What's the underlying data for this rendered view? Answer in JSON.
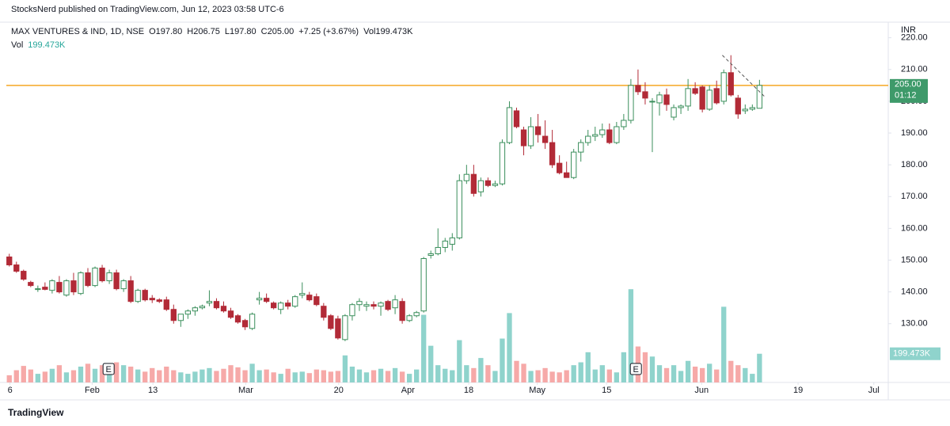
{
  "publisher": "StocksNerd published on TradingView.com, Jun 12, 2023 03:58 UTC-6",
  "brand": "TradingView",
  "chart_data": {
    "type": "candlestick",
    "symbol": "MAX VENTURES & IND, 1D, NSE",
    "ohlc_labels": [
      "O197.80",
      "H206.75",
      "L197.80",
      "C205.00",
      "+7.25 (+3.67%)",
      "Vol199.473K"
    ],
    "vol_title": "Vol",
    "vol_value": "199.473K",
    "currency": "INR",
    "up_color": "#3b8f5c",
    "down_color": "#b22a37",
    "vol_up_color": "#8fd3cc",
    "vol_down_color": "#f6a9a8",
    "grid": false,
    "ylim": [
      111.5,
      224.4
    ],
    "yticks": [
      {
        "value": 130,
        "label": "130.00"
      },
      {
        "value": 140,
        "label": "140.00"
      },
      {
        "value": 150,
        "label": "150.00"
      },
      {
        "value": 160,
        "label": "160.00"
      },
      {
        "value": 170,
        "label": "170.00"
      },
      {
        "value": 180,
        "label": "180.00"
      },
      {
        "value": 190,
        "label": "190.00"
      },
      {
        "value": 200,
        "label": "200.00"
      },
      {
        "value": 210,
        "label": "210.00"
      },
      {
        "value": 220,
        "label": "220.00"
      }
    ],
    "xlim": [
      -1.3,
      122.8
    ],
    "xticks": [
      {
        "value": 0.1,
        "label": "6"
      },
      {
        "value": 11.6,
        "label": "Feb"
      },
      {
        "value": 20.1,
        "label": "13"
      },
      {
        "value": 33.1,
        "label": "Mar"
      },
      {
        "value": 46.1,
        "label": "20"
      },
      {
        "value": 55.8,
        "label": "Apr"
      },
      {
        "value": 64.3,
        "label": "18"
      },
      {
        "value": 73.9,
        "label": "May"
      },
      {
        "value": 83.6,
        "label": "15"
      },
      {
        "value": 96.9,
        "label": "Jun"
      },
      {
        "value": 110.4,
        "label": "19"
      },
      {
        "value": 121.0,
        "label": "Jul"
      }
    ],
    "candles": [
      [
        151,
        152,
        148,
        148.5
      ],
      [
        148.5,
        149.5,
        146,
        146.5
      ],
      [
        146.5,
        147,
        143.5,
        144
      ],
      [
        143,
        143.5,
        141.5,
        142
      ],
      [
        141,
        142,
        140,
        141
      ],
      [
        141.5,
        143,
        140.5,
        140.8
      ],
      [
        140.5,
        144,
        139.5,
        143.5
      ],
      [
        143,
        145,
        139.5,
        140
      ],
      [
        139,
        144,
        138.5,
        143.5
      ],
      [
        143.5,
        146,
        139,
        140
      ],
      [
        139.5,
        146.5,
        139,
        146
      ],
      [
        146,
        147.5,
        141.5,
        142
      ],
      [
        142,
        148,
        141.5,
        147.5
      ],
      [
        147.5,
        148.5,
        143,
        143.5
      ],
      [
        143.5,
        147,
        142.5,
        146
      ],
      [
        146,
        147,
        140.5,
        141
      ],
      [
        141,
        144,
        140,
        143.5
      ],
      [
        143.5,
        145,
        136.5,
        137
      ],
      [
        137,
        141,
        136.5,
        140.5
      ],
      [
        140.5,
        141,
        137,
        137.5
      ],
      [
        138,
        139,
        136.5,
        137.5
      ],
      [
        137.5,
        138,
        136.5,
        137
      ],
      [
        137.5,
        138.5,
        134,
        134.5
      ],
      [
        134.5,
        136,
        130,
        131
      ],
      [
        131,
        133,
        129,
        133
      ],
      [
        133,
        134.5,
        131.5,
        134
      ],
      [
        134,
        135.5,
        132.5,
        135
      ],
      [
        135,
        136,
        134.5,
        135.5
      ],
      [
        136.5,
        140.5,
        135.5,
        137
      ],
      [
        137,
        138,
        134.5,
        135
      ],
      [
        135.5,
        137,
        133.5,
        134
      ],
      [
        134,
        135,
        131.5,
        132
      ],
      [
        132.5,
        133,
        130,
        130.5
      ],
      [
        131,
        131.5,
        128,
        129
      ],
      [
        128.5,
        133.5,
        128,
        133
      ],
      [
        137.5,
        140,
        136,
        138
      ],
      [
        138,
        139.5,
        136.5,
        137
      ],
      [
        136.5,
        137,
        134.5,
        135
      ],
      [
        134.5,
        137,
        133,
        136.5
      ],
      [
        136.5,
        137.5,
        134.5,
        135.5
      ],
      [
        135.5,
        139,
        135,
        138.5
      ],
      [
        139,
        143,
        138,
        139.5
      ],
      [
        139,
        140,
        137,
        137.5
      ],
      [
        138.5,
        139.5,
        135.5,
        136
      ],
      [
        135.5,
        136.5,
        131,
        132
      ],
      [
        132.5,
        133,
        128,
        128.5
      ],
      [
        131.5,
        132.5,
        125,
        125.5
      ],
      [
        125,
        133,
        124.5,
        132.5
      ],
      [
        132.5,
        136.5,
        131,
        136
      ],
      [
        136,
        138,
        134,
        137
      ],
      [
        135.5,
        137,
        134,
        136
      ],
      [
        136,
        137,
        134.5,
        135.5
      ],
      [
        135.5,
        137,
        132.5,
        136.5
      ],
      [
        137,
        137.5,
        134,
        134.5
      ],
      [
        135,
        139,
        133,
        137.5
      ],
      [
        137,
        138,
        130,
        131
      ],
      [
        131,
        133,
        130.5,
        132.5
      ],
      [
        132.5,
        134,
        132,
        133.5
      ],
      [
        134,
        151,
        133.5,
        150.5
      ],
      [
        151.5,
        153,
        150.5,
        152
      ],
      [
        152,
        160,
        151.5,
        154
      ],
      [
        154,
        157,
        152.5,
        156
      ],
      [
        155,
        158.5,
        153,
        157
      ],
      [
        157,
        177,
        156.5,
        175
      ],
      [
        175,
        180,
        174,
        177
      ],
      [
        177,
        180,
        170,
        171
      ],
      [
        171.5,
        176,
        170,
        175
      ],
      [
        175,
        176,
        173,
        173.5
      ],
      [
        173.5,
        175,
        173,
        174
      ],
      [
        174,
        188,
        173.5,
        187
      ],
      [
        187,
        200,
        186.5,
        198
      ],
      [
        197,
        198,
        191.5,
        192
      ],
      [
        191,
        192,
        183,
        186
      ],
      [
        186,
        195,
        185,
        192
      ],
      [
        192,
        196,
        187,
        189.5
      ],
      [
        189,
        194,
        185,
        187
      ],
      [
        187,
        191,
        179,
        180
      ],
      [
        180.5,
        183,
        177,
        177.5
      ],
      [
        177.5,
        181,
        176,
        176
      ],
      [
        176,
        185,
        175.5,
        184
      ],
      [
        184,
        188,
        181,
        187
      ],
      [
        187,
        191,
        186,
        189
      ],
      [
        189,
        192,
        187.5,
        189.5
      ],
      [
        189.5,
        193,
        188.5,
        191
      ],
      [
        191,
        193,
        186.5,
        187
      ],
      [
        187,
        193.5,
        186.5,
        192
      ],
      [
        192,
        196,
        191,
        194
      ],
      [
        194,
        207,
        193,
        205
      ],
      [
        205,
        210,
        202,
        203
      ],
      [
        203,
        206,
        199,
        201
      ],
      [
        200,
        201,
        184,
        200
      ],
      [
        199.5,
        203,
        195.5,
        202
      ],
      [
        202,
        204,
        197,
        199
      ],
      [
        195,
        199,
        194,
        198
      ],
      [
        198,
        199,
        196,
        198.5
      ],
      [
        198.5,
        207,
        197,
        204
      ],
      [
        204,
        206,
        202,
        202.5
      ],
      [
        204.5,
        205,
        196.5,
        197.5
      ],
      [
        197.5,
        205,
        197,
        203.5
      ],
      [
        204,
        206.5,
        199,
        199.5
      ],
      [
        200,
        210,
        199,
        209
      ],
      [
        209,
        214.5,
        201.5,
        202
      ],
      [
        201,
        202,
        194.5,
        196
      ],
      [
        197,
        199,
        196,
        197.5
      ],
      [
        197.5,
        199,
        197,
        198
      ],
      [
        197.8,
        206.75,
        197.8,
        205
      ]
    ],
    "volume": [
      50,
      85,
      115,
      90,
      60,
      75,
      95,
      120,
      70,
      85,
      110,
      130,
      95,
      120,
      80,
      140,
      120,
      110,
      90,
      75,
      100,
      85,
      110,
      85,
      70,
      60,
      75,
      90,
      100,
      80,
      95,
      120,
      105,
      85,
      130,
      85,
      90,
      70,
      60,
      95,
      70,
      75,
      65,
      90,
      85,
      75,
      80,
      188,
      110,
      90,
      70,
      85,
      95,
      80,
      100,
      75,
      60,
      90,
      470,
      255,
      120,
      95,
      85,
      294,
      120,
      100,
      170,
      120,
      80,
      305,
      482,
      150,
      130,
      80,
      85,
      100,
      75,
      70,
      85,
      120,
      140,
      210,
      90,
      120,
      90,
      70,
      210,
      648,
      250,
      210,
      180,
      120,
      100,
      120,
      80,
      150,
      110,
      100,
      130,
      90,
      526,
      150,
      120,
      100,
      60,
      199.473
    ],
    "hline": {
      "value": 205,
      "color": "#f5a623"
    },
    "last_price_label": "205.00",
    "countdown": "01:12",
    "trendline": {
      "x": [
        99.8,
        105.7
      ],
      "y": [
        214.5,
        201.5
      ]
    },
    "events": [
      {
        "x": 13.9,
        "label": "E"
      },
      {
        "x": 87.7,
        "label": "E"
      }
    ]
  }
}
